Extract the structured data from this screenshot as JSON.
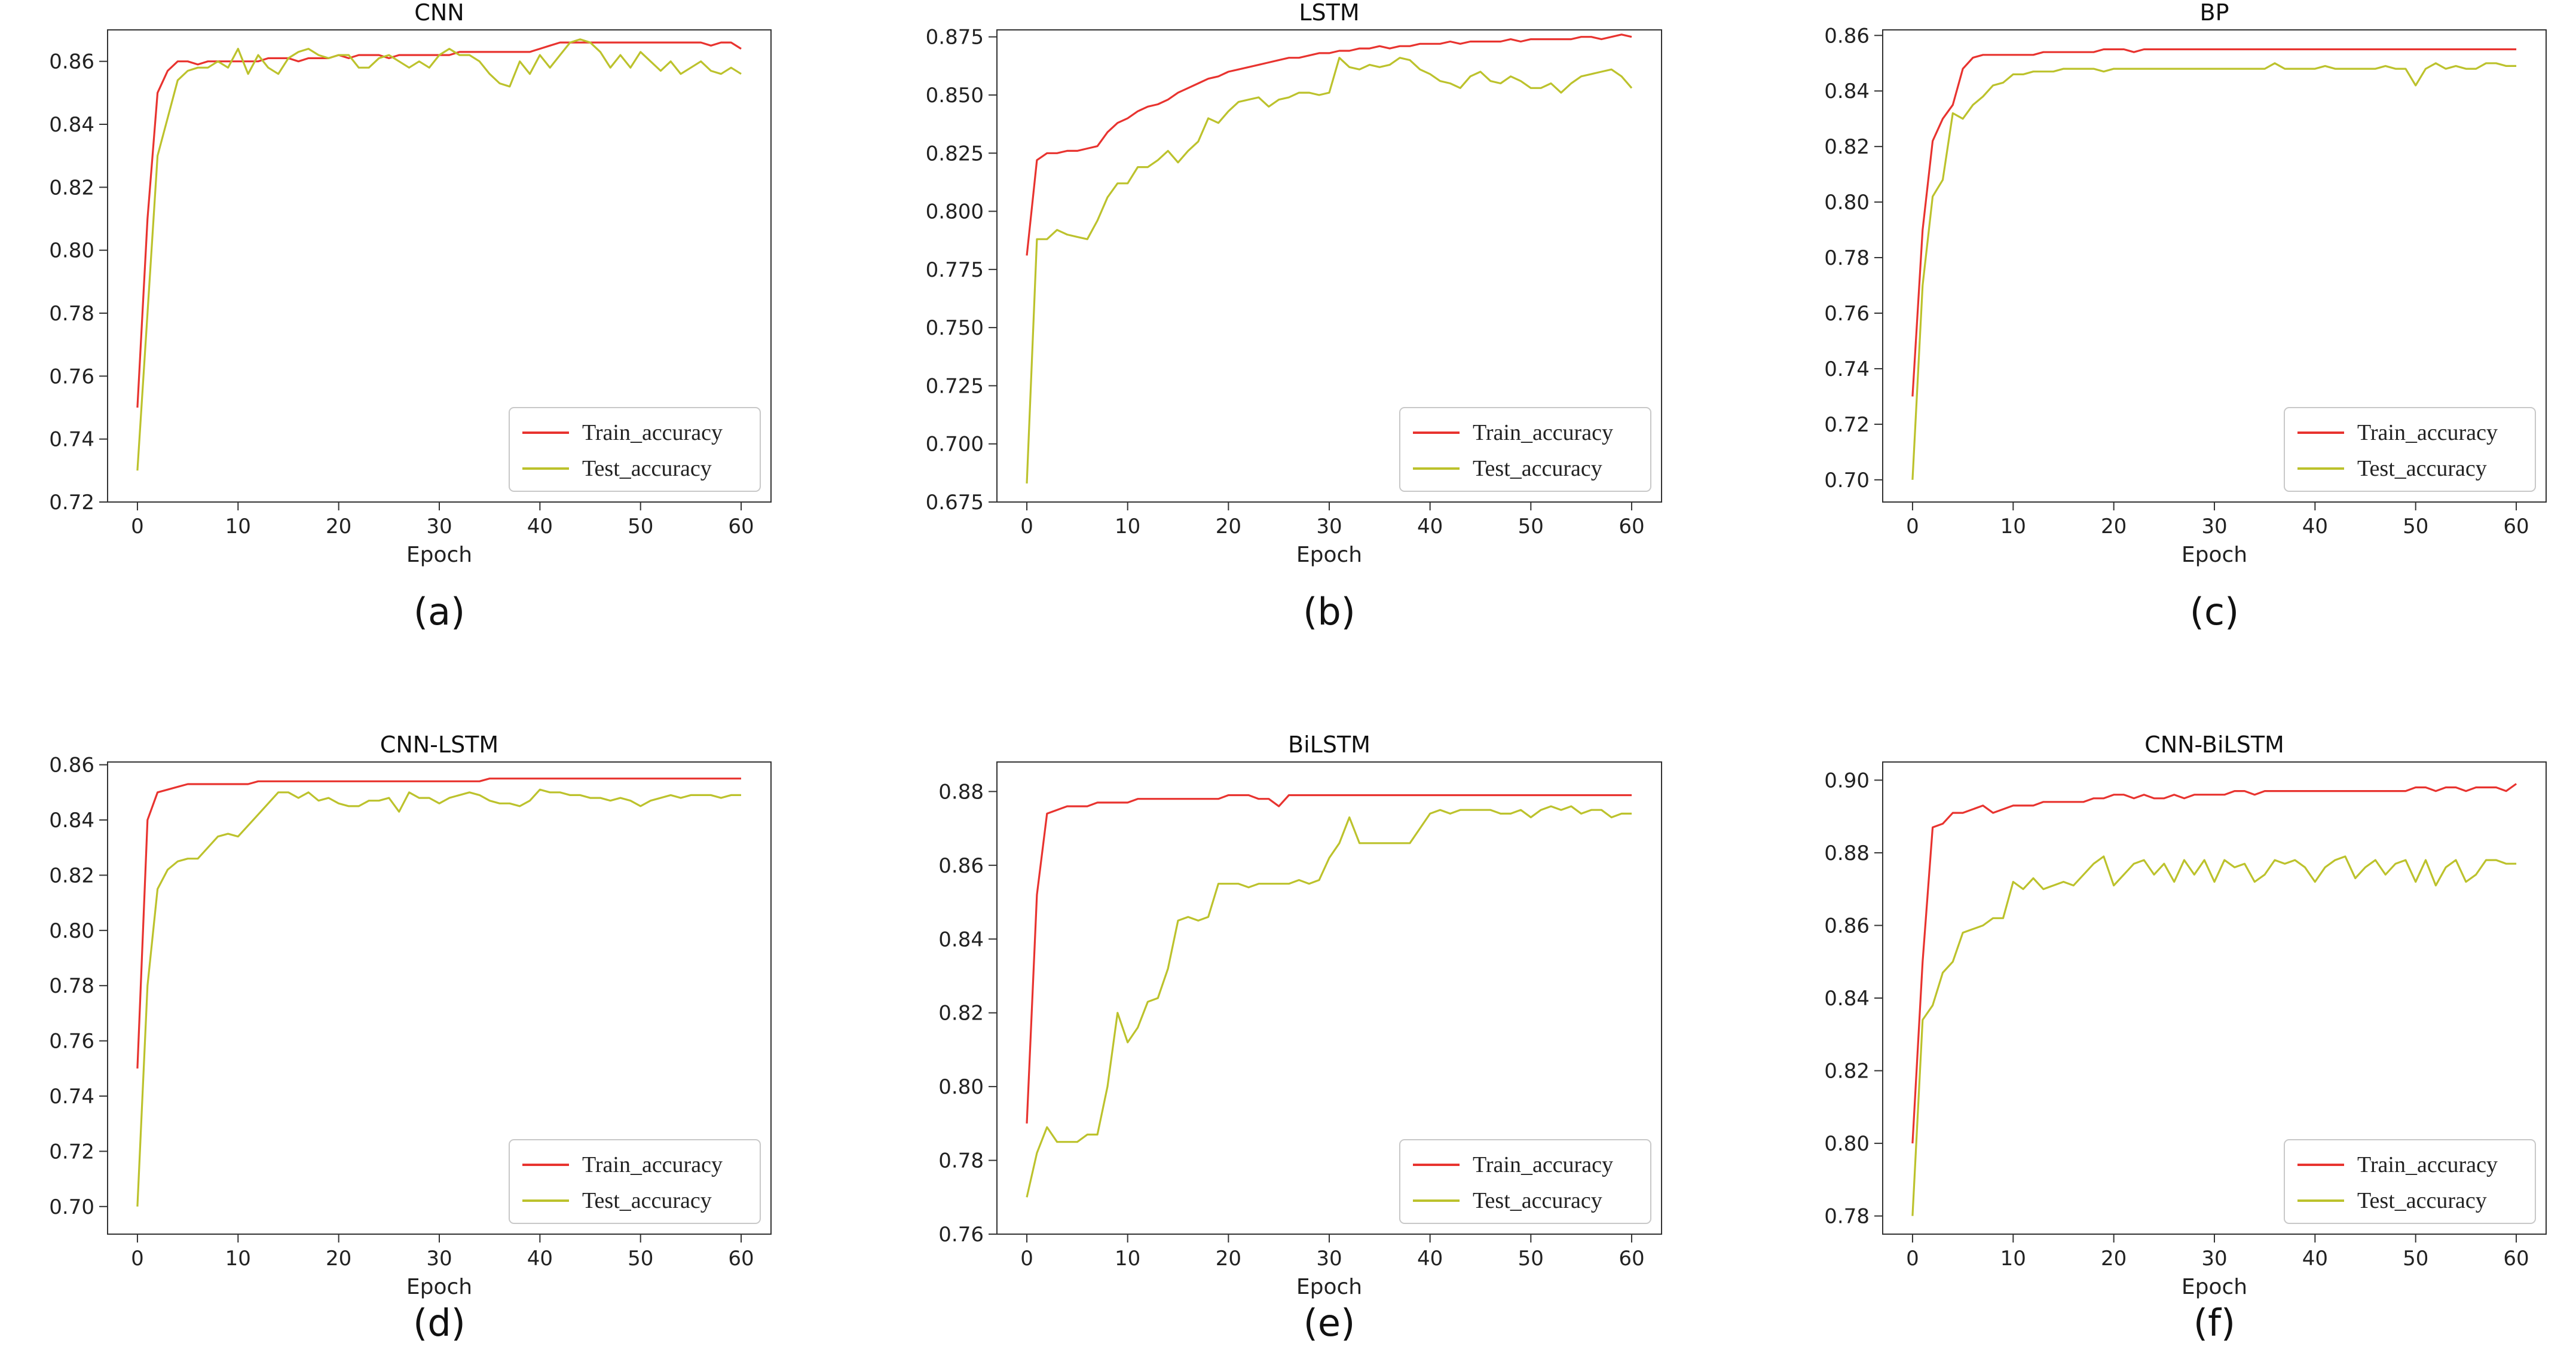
{
  "colors": {
    "train": "#e8332f",
    "test": "#bcc22c",
    "axis": "#333333",
    "legend_border": "#c8c8c8"
  },
  "chart_data": [
    {
      "type": "line",
      "title": "CNN",
      "caption": "(a)",
      "xlabel": "Epoch",
      "ylabel": "",
      "xlim": [
        0,
        60
      ],
      "ylim": [
        0.72,
        0.87
      ],
      "xticks": [
        0,
        10,
        20,
        30,
        40,
        50,
        60
      ],
      "yticks": [
        0.72,
        0.74,
        0.76,
        0.78,
        0.8,
        0.82,
        0.84,
        0.86
      ],
      "ytick_labels": [
        "0.72",
        "0.74",
        "0.76",
        "0.78",
        "0.80",
        "0.82",
        "0.84",
        "0.86"
      ],
      "legend_loc": "lower-right",
      "series": [
        {
          "name": "Train_accuracy",
          "color": "#e8332f",
          "values": [
            0.75,
            0.81,
            0.85,
            0.857,
            0.86,
            0.86,
            0.859,
            0.86,
            0.86,
            0.86,
            0.86,
            0.86,
            0.86,
            0.861,
            0.861,
            0.861,
            0.86,
            0.861,
            0.861,
            0.861,
            0.862,
            0.861,
            0.862,
            0.862,
            0.862,
            0.861,
            0.862,
            0.862,
            0.862,
            0.862,
            0.862,
            0.862,
            0.863,
            0.863,
            0.863,
            0.863,
            0.863,
            0.863,
            0.863,
            0.863,
            0.864,
            0.865,
            0.866,
            0.866,
            0.866,
            0.866,
            0.866,
            0.866,
            0.866,
            0.866,
            0.866,
            0.866,
            0.866,
            0.866,
            0.866,
            0.866,
            0.866,
            0.865,
            0.866,
            0.866,
            0.864
          ]
        },
        {
          "name": "Test_accuracy",
          "color": "#bcc22c",
          "values": [
            0.73,
            0.78,
            0.83,
            0.842,
            0.854,
            0.857,
            0.858,
            0.858,
            0.86,
            0.858,
            0.864,
            0.856,
            0.862,
            0.858,
            0.856,
            0.861,
            0.863,
            0.864,
            0.862,
            0.861,
            0.862,
            0.862,
            0.858,
            0.858,
            0.861,
            0.862,
            0.86,
            0.858,
            0.86,
            0.858,
            0.862,
            0.864,
            0.862,
            0.862,
            0.86,
            0.856,
            0.853,
            0.852,
            0.86,
            0.856,
            0.862,
            0.858,
            0.862,
            0.866,
            0.867,
            0.866,
            0.863,
            0.858,
            0.862,
            0.858,
            0.863,
            0.86,
            0.857,
            0.86,
            0.856,
            0.858,
            0.86,
            0.857,
            0.856,
            0.858,
            0.856
          ]
        }
      ]
    },
    {
      "type": "line",
      "title": "LSTM",
      "caption": "(b)",
      "xlabel": "Epoch",
      "ylabel": "",
      "xlim": [
        0,
        60
      ],
      "ylim": [
        0.675,
        0.878
      ],
      "xticks": [
        0,
        10,
        20,
        30,
        40,
        50,
        60
      ],
      "yticks": [
        0.675,
        0.7,
        0.725,
        0.75,
        0.775,
        0.8,
        0.825,
        0.85,
        0.875
      ],
      "ytick_labels": [
        "0.675",
        "0.700",
        "0.725",
        "0.750",
        "0.775",
        "0.800",
        "0.825",
        "0.850",
        "0.875"
      ],
      "legend_loc": "lower-right",
      "series": [
        {
          "name": "Train_accuracy",
          "color": "#e8332f",
          "values": [
            0.781,
            0.822,
            0.825,
            0.825,
            0.826,
            0.826,
            0.827,
            0.828,
            0.834,
            0.838,
            0.84,
            0.843,
            0.845,
            0.846,
            0.848,
            0.851,
            0.853,
            0.855,
            0.857,
            0.858,
            0.86,
            0.861,
            0.862,
            0.863,
            0.864,
            0.865,
            0.866,
            0.866,
            0.867,
            0.868,
            0.868,
            0.869,
            0.869,
            0.87,
            0.87,
            0.871,
            0.87,
            0.871,
            0.871,
            0.872,
            0.872,
            0.872,
            0.873,
            0.872,
            0.873,
            0.873,
            0.873,
            0.873,
            0.874,
            0.873,
            0.874,
            0.874,
            0.874,
            0.874,
            0.874,
            0.875,
            0.875,
            0.874,
            0.875,
            0.876,
            0.875
          ]
        },
        {
          "name": "Test_accuracy",
          "color": "#bcc22c",
          "values": [
            0.683,
            0.788,
            0.788,
            0.792,
            0.79,
            0.789,
            0.788,
            0.796,
            0.806,
            0.812,
            0.812,
            0.819,
            0.819,
            0.822,
            0.826,
            0.821,
            0.826,
            0.83,
            0.84,
            0.838,
            0.843,
            0.847,
            0.848,
            0.849,
            0.845,
            0.848,
            0.849,
            0.851,
            0.851,
            0.85,
            0.851,
            0.866,
            0.862,
            0.861,
            0.863,
            0.862,
            0.863,
            0.866,
            0.865,
            0.861,
            0.859,
            0.856,
            0.855,
            0.853,
            0.858,
            0.86,
            0.856,
            0.855,
            0.858,
            0.856,
            0.853,
            0.853,
            0.855,
            0.851,
            0.855,
            0.858,
            0.859,
            0.86,
            0.861,
            0.858,
            0.853
          ]
        }
      ]
    },
    {
      "type": "line",
      "title": "BP",
      "caption": "(c)",
      "xlabel": "Epoch",
      "ylabel": "",
      "xlim": [
        0,
        60
      ],
      "ylim": [
        0.692,
        0.862
      ],
      "xticks": [
        0,
        10,
        20,
        30,
        40,
        50,
        60
      ],
      "yticks": [
        0.7,
        0.72,
        0.74,
        0.76,
        0.78,
        0.8,
        0.82,
        0.84,
        0.86
      ],
      "ytick_labels": [
        "0.70",
        "0.72",
        "0.74",
        "0.76",
        "0.78",
        "0.80",
        "0.82",
        "0.84",
        "0.86"
      ],
      "legend_loc": "lower-right",
      "series": [
        {
          "name": "Train_accuracy",
          "color": "#e8332f",
          "values": [
            0.73,
            0.79,
            0.822,
            0.83,
            0.835,
            0.848,
            0.852,
            0.853,
            0.853,
            0.853,
            0.853,
            0.853,
            0.853,
            0.854,
            0.854,
            0.854,
            0.854,
            0.854,
            0.854,
            0.855,
            0.855,
            0.855,
            0.854,
            0.855,
            0.855,
            0.855,
            0.855,
            0.855,
            0.855,
            0.855,
            0.855,
            0.855,
            0.855,
            0.855,
            0.855,
            0.855,
            0.855,
            0.855,
            0.855,
            0.855,
            0.855,
            0.855,
            0.855,
            0.855,
            0.855,
            0.855,
            0.855,
            0.855,
            0.855,
            0.855,
            0.855,
            0.855,
            0.855,
            0.855,
            0.855,
            0.855,
            0.855,
            0.855,
            0.855,
            0.855,
            0.855
          ]
        },
        {
          "name": "Test_accuracy",
          "color": "#bcc22c",
          "values": [
            0.7,
            0.77,
            0.802,
            0.808,
            0.832,
            0.83,
            0.835,
            0.838,
            0.842,
            0.843,
            0.846,
            0.846,
            0.847,
            0.847,
            0.847,
            0.848,
            0.848,
            0.848,
            0.848,
            0.847,
            0.848,
            0.848,
            0.848,
            0.848,
            0.848,
            0.848,
            0.848,
            0.848,
            0.848,
            0.848,
            0.848,
            0.848,
            0.848,
            0.848,
            0.848,
            0.848,
            0.85,
            0.848,
            0.848,
            0.848,
            0.848,
            0.849,
            0.848,
            0.848,
            0.848,
            0.848,
            0.848,
            0.849,
            0.848,
            0.848,
            0.842,
            0.848,
            0.85,
            0.848,
            0.849,
            0.848,
            0.848,
            0.85,
            0.85,
            0.849,
            0.849
          ]
        }
      ]
    },
    {
      "type": "line",
      "title": "CNN-LSTM",
      "caption": "(d)",
      "xlabel": "Epoch",
      "ylabel": "",
      "xlim": [
        0,
        60
      ],
      "ylim": [
        0.69,
        0.861
      ],
      "xticks": [
        0,
        10,
        20,
        30,
        40,
        50,
        60
      ],
      "yticks": [
        0.7,
        0.72,
        0.74,
        0.76,
        0.78,
        0.8,
        0.82,
        0.84,
        0.86
      ],
      "ytick_labels": [
        "0.70",
        "0.72",
        "0.74",
        "0.76",
        "0.78",
        "0.80",
        "0.82",
        "0.84",
        "0.86"
      ],
      "legend_loc": "lower-right",
      "series": [
        {
          "name": "Train_accuracy",
          "color": "#e8332f",
          "values": [
            0.75,
            0.84,
            0.85,
            0.851,
            0.852,
            0.853,
            0.853,
            0.853,
            0.853,
            0.853,
            0.853,
            0.853,
            0.854,
            0.854,
            0.854,
            0.854,
            0.854,
            0.854,
            0.854,
            0.854,
            0.854,
            0.854,
            0.854,
            0.854,
            0.854,
            0.854,
            0.854,
            0.854,
            0.854,
            0.854,
            0.854,
            0.854,
            0.854,
            0.854,
            0.854,
            0.855,
            0.855,
            0.855,
            0.855,
            0.855,
            0.855,
            0.855,
            0.855,
            0.855,
            0.855,
            0.855,
            0.855,
            0.855,
            0.855,
            0.855,
            0.855,
            0.855,
            0.855,
            0.855,
            0.855,
            0.855,
            0.855,
            0.855,
            0.855,
            0.855,
            0.855
          ]
        },
        {
          "name": "Test_accuracy",
          "color": "#bcc22c",
          "values": [
            0.7,
            0.78,
            0.815,
            0.822,
            0.825,
            0.826,
            0.826,
            0.83,
            0.834,
            0.835,
            0.834,
            0.838,
            0.842,
            0.846,
            0.85,
            0.85,
            0.848,
            0.85,
            0.847,
            0.848,
            0.846,
            0.845,
            0.845,
            0.847,
            0.847,
            0.848,
            0.843,
            0.85,
            0.848,
            0.848,
            0.846,
            0.848,
            0.849,
            0.85,
            0.849,
            0.847,
            0.846,
            0.846,
            0.845,
            0.847,
            0.851,
            0.85,
            0.85,
            0.849,
            0.849,
            0.848,
            0.848,
            0.847,
            0.848,
            0.847,
            0.845,
            0.847,
            0.848,
            0.849,
            0.848,
            0.849,
            0.849,
            0.849,
            0.848,
            0.849,
            0.849
          ]
        }
      ]
    },
    {
      "type": "line",
      "title": "BiLSTM",
      "caption": "(e)",
      "xlabel": "Epoch",
      "ylabel": "",
      "xlim": [
        0,
        60
      ],
      "ylim": [
        0.76,
        0.888
      ],
      "xticks": [
        0,
        10,
        20,
        30,
        40,
        50,
        60
      ],
      "yticks": [
        0.76,
        0.78,
        0.8,
        0.82,
        0.84,
        0.86,
        0.88
      ],
      "ytick_labels": [
        "0.76",
        "0.78",
        "0.80",
        "0.82",
        "0.84",
        "0.86",
        "0.88"
      ],
      "legend_loc": "lower-right",
      "series": [
        {
          "name": "Train_accuracy",
          "color": "#e8332f",
          "values": [
            0.79,
            0.852,
            0.874,
            0.875,
            0.876,
            0.876,
            0.876,
            0.877,
            0.877,
            0.877,
            0.877,
            0.878,
            0.878,
            0.878,
            0.878,
            0.878,
            0.878,
            0.878,
            0.878,
            0.878,
            0.879,
            0.879,
            0.879,
            0.878,
            0.878,
            0.876,
            0.879,
            0.879,
            0.879,
            0.879,
            0.879,
            0.879,
            0.879,
            0.879,
            0.879,
            0.879,
            0.879,
            0.879,
            0.879,
            0.879,
            0.879,
            0.879,
            0.879,
            0.879,
            0.879,
            0.879,
            0.879,
            0.879,
            0.879,
            0.879,
            0.879,
            0.879,
            0.879,
            0.879,
            0.879,
            0.879,
            0.879,
            0.879,
            0.879,
            0.879,
            0.879
          ]
        },
        {
          "name": "Test_accuracy",
          "color": "#bcc22c",
          "values": [
            0.77,
            0.782,
            0.789,
            0.785,
            0.785,
            0.785,
            0.787,
            0.787,
            0.8,
            0.82,
            0.812,
            0.816,
            0.823,
            0.824,
            0.832,
            0.845,
            0.846,
            0.845,
            0.846,
            0.855,
            0.855,
            0.855,
            0.854,
            0.855,
            0.855,
            0.855,
            0.855,
            0.856,
            0.855,
            0.856,
            0.862,
            0.866,
            0.873,
            0.866,
            0.866,
            0.866,
            0.866,
            0.866,
            0.866,
            0.87,
            0.874,
            0.875,
            0.874,
            0.875,
            0.875,
            0.875,
            0.875,
            0.874,
            0.874,
            0.875,
            0.873,
            0.875,
            0.876,
            0.875,
            0.876,
            0.874,
            0.875,
            0.875,
            0.873,
            0.874,
            0.874
          ]
        }
      ]
    },
    {
      "type": "line",
      "title": "CNN-BiLSTM",
      "caption": "(f)",
      "xlabel": "Epoch",
      "ylabel": "",
      "xlim": [
        0,
        60
      ],
      "ylim": [
        0.775,
        0.905
      ],
      "xticks": [
        0,
        10,
        20,
        30,
        40,
        50,
        60
      ],
      "yticks": [
        0.78,
        0.8,
        0.82,
        0.84,
        0.86,
        0.88,
        0.9
      ],
      "ytick_labels": [
        "0.78",
        "0.80",
        "0.82",
        "0.84",
        "0.86",
        "0.88",
        "0.90"
      ],
      "legend_loc": "lower-right",
      "series": [
        {
          "name": "Train_accuracy",
          "color": "#e8332f",
          "values": [
            0.8,
            0.85,
            0.887,
            0.888,
            0.891,
            0.891,
            0.892,
            0.893,
            0.891,
            0.892,
            0.893,
            0.893,
            0.893,
            0.894,
            0.894,
            0.894,
            0.894,
            0.894,
            0.895,
            0.895,
            0.896,
            0.896,
            0.895,
            0.896,
            0.895,
            0.895,
            0.896,
            0.895,
            0.896,
            0.896,
            0.896,
            0.896,
            0.897,
            0.897,
            0.896,
            0.897,
            0.897,
            0.897,
            0.897,
            0.897,
            0.897,
            0.897,
            0.897,
            0.897,
            0.897,
            0.897,
            0.897,
            0.897,
            0.897,
            0.897,
            0.898,
            0.898,
            0.897,
            0.898,
            0.898,
            0.897,
            0.898,
            0.898,
            0.898,
            0.897,
            0.899
          ]
        },
        {
          "name": "Test_accuracy",
          "color": "#bcc22c",
          "values": [
            0.78,
            0.834,
            0.838,
            0.847,
            0.85,
            0.858,
            0.859,
            0.86,
            0.862,
            0.862,
            0.872,
            0.87,
            0.873,
            0.87,
            0.871,
            0.872,
            0.871,
            0.874,
            0.877,
            0.879,
            0.871,
            0.874,
            0.877,
            0.878,
            0.874,
            0.877,
            0.872,
            0.878,
            0.874,
            0.878,
            0.872,
            0.878,
            0.876,
            0.877,
            0.872,
            0.874,
            0.878,
            0.877,
            0.878,
            0.876,
            0.872,
            0.876,
            0.878,
            0.879,
            0.873,
            0.876,
            0.878,
            0.874,
            0.877,
            0.878,
            0.872,
            0.878,
            0.871,
            0.876,
            0.878,
            0.872,
            0.874,
            0.878,
            0.878,
            0.877,
            0.877
          ]
        }
      ]
    }
  ]
}
